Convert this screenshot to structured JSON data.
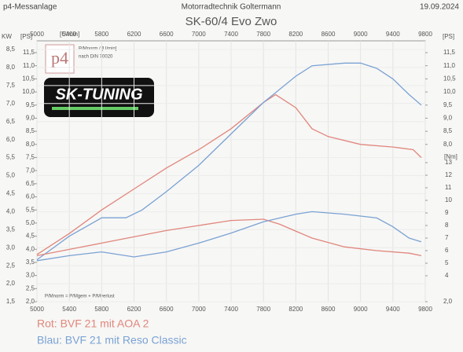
{
  "chart_data": {
    "type": "line",
    "title": "SK-60/4 Evo Zwo",
    "header_left": "p4-Messanlage",
    "header_center": "Motorradtechnik Goltermann",
    "header_right": "19.09.2024",
    "x_unit": "[U/min]",
    "kw_unit": "KW",
    "ps_unit": "[PS]",
    "y2_unit": "[Nm]",
    "logo_p4": "p4",
    "logo_sk": "SK-TUNING",
    "note_1": "P/Mnorm / [U/min]",
    "note_2": "nach DIN 70020",
    "note_3": "P/Mnorm = P/Mgem + P/Mverlust",
    "xlim": [
      5000,
      9800
    ],
    "xticks": [
      5000,
      5400,
      5800,
      6200,
      6600,
      7000,
      7400,
      7800,
      8200,
      8600,
      9000,
      9400,
      9800
    ],
    "ylim": [
      2.0,
      11.5
    ],
    "yticks": [
      {
        "value": 11.5,
        "label": "11,5"
      },
      {
        "value": 11.0,
        "label": "11,0"
      },
      {
        "value": 10.5,
        "label": "10,5"
      },
      {
        "value": 10.0,
        "label": "10,0"
      },
      {
        "value": 9.5,
        "label": "9,5"
      },
      {
        "value": 9.0,
        "label": "9,0"
      },
      {
        "value": 8.5,
        "label": "8,5"
      },
      {
        "value": 8.0,
        "label": "8,0"
      },
      {
        "value": 7.5,
        "label": "7,5"
      },
      {
        "value": 7.0,
        "label": "7,0"
      },
      {
        "value": 6.5,
        "label": "6,5"
      },
      {
        "value": 6.0,
        "label": "6,0"
      },
      {
        "value": 5.5,
        "label": "5,5"
      },
      {
        "value": 5.0,
        "label": "5,0"
      },
      {
        "value": 4.5,
        "label": "4,5"
      },
      {
        "value": 4.0,
        "label": "4,0"
      },
      {
        "value": 3.5,
        "label": "3,5"
      },
      {
        "value": 3.0,
        "label": "3,0"
      },
      {
        "value": 2.5,
        "label": "2,5"
      },
      {
        "value": 2.0,
        "label": "2,0"
      }
    ],
    "kwlim": [
      1.5,
      8.5
    ],
    "kwticks": [
      {
        "value": 8.5,
        "label": "8,5"
      },
      {
        "value": 8.0,
        "label": "8,0"
      },
      {
        "value": 7.5,
        "label": "7,5"
      },
      {
        "value": 7.0,
        "label": "7,0"
      },
      {
        "value": 6.5,
        "label": "6,5"
      },
      {
        "value": 6.0,
        "label": "6,0"
      },
      {
        "value": 5.5,
        "label": "5,5"
      },
      {
        "value": 5.0,
        "label": "5,0"
      },
      {
        "value": 4.5,
        "label": "4,5"
      },
      {
        "value": 4.0,
        "label": "4,0"
      },
      {
        "value": 3.5,
        "label": "3,5"
      },
      {
        "value": 3.0,
        "label": "3,0"
      },
      {
        "value": 2.5,
        "label": "2,5"
      },
      {
        "value": 2.0,
        "label": "2,0"
      },
      {
        "value": 1.5,
        "label": "1,5"
      }
    ],
    "right_psticks": [
      {
        "value": 11.5,
        "label": "11,5"
      },
      {
        "value": 11.0,
        "label": "11,0"
      },
      {
        "value": 10.5,
        "label": "10,5"
      },
      {
        "value": 10.0,
        "label": "10,0"
      },
      {
        "value": 9.5,
        "label": "9,5"
      },
      {
        "value": 9.0,
        "label": "9,0"
      },
      {
        "value": 8.5,
        "label": "8,5"
      },
      {
        "value": 8.0,
        "label": "8,0"
      },
      {
        "value": 2.0,
        "label": "2,0"
      }
    ],
    "y2lim": [
      4,
      13
    ],
    "y2ticks": [
      13,
      12,
      11,
      10,
      9,
      8,
      7,
      6,
      5,
      4
    ],
    "grid": true,
    "series": [
      {
        "name": "Rot: BVF 21 mit AOA 2",
        "color": "#e0867c",
        "x": [
          5000,
          5400,
          5800,
          6200,
          6600,
          7000,
          7400,
          7800,
          7950,
          8200,
          8400,
          8600,
          9000,
          9400,
          9650,
          9750
        ],
        "values": [
          3.8,
          4.6,
          5.5,
          6.3,
          7.1,
          7.8,
          8.6,
          9.6,
          9.9,
          9.4,
          8.6,
          8.3,
          8.0,
          7.9,
          7.8,
          7.5
        ]
      },
      {
        "name": "Blau: BVF 21 mit Reso Classic",
        "color": "#7aa2d4",
        "x": [
          5000,
          5400,
          5800,
          6100,
          6300,
          6600,
          7000,
          7400,
          7800,
          8200,
          8400,
          8800,
          9000,
          9200,
          9400,
          9600,
          9750
        ],
        "values": [
          3.6,
          4.5,
          5.2,
          5.2,
          5.5,
          6.2,
          7.2,
          8.4,
          9.6,
          10.6,
          11.0,
          11.1,
          11.1,
          10.9,
          10.5,
          9.9,
          9.5
        ]
      },
      {
        "axis": "y2",
        "color": "#e0867c",
        "x": [
          5000,
          5400,
          5800,
          6200,
          6600,
          7000,
          7400,
          7800,
          8000,
          8400,
          8800,
          9200,
          9600,
          9750
        ],
        "values": [
          5.6,
          6.1,
          6.6,
          7.1,
          7.6,
          8.0,
          8.4,
          8.5,
          8.1,
          7.0,
          6.3,
          6.0,
          5.8,
          5.6
        ]
      },
      {
        "axis": "y2",
        "color": "#7aa2d4",
        "x": [
          5000,
          5400,
          5800,
          6200,
          6600,
          7000,
          7400,
          7800,
          8200,
          8400,
          8800,
          9200,
          9400,
          9600,
          9750
        ],
        "values": [
          5.2,
          5.6,
          5.9,
          5.5,
          5.9,
          6.6,
          7.4,
          8.3,
          8.9,
          9.1,
          8.9,
          8.6,
          7.9,
          7.0,
          6.7
        ]
      }
    ]
  }
}
